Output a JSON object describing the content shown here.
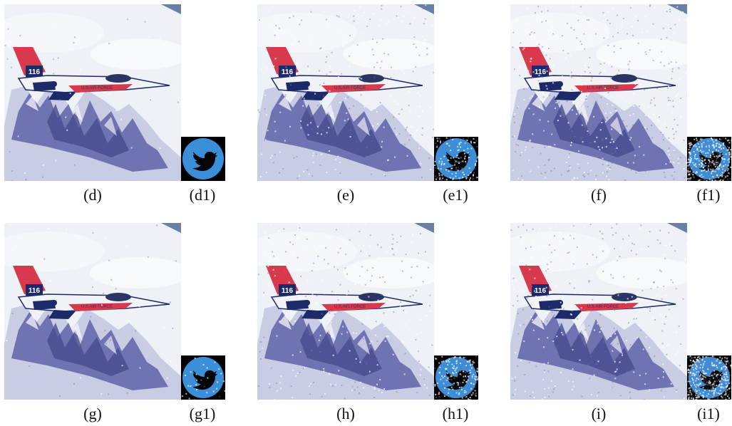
{
  "figure": {
    "panels": [
      {
        "id": "d",
        "label": "(d)",
        "wm_label": "(d1)",
        "noise": 0.05,
        "wm_noise": 0.0
      },
      {
        "id": "e",
        "label": "(e)",
        "wm_label": "(e1)",
        "noise": 0.35,
        "wm_noise": 0.25
      },
      {
        "id": "f",
        "label": "(f)",
        "wm_label": "(f1)",
        "noise": 0.55,
        "wm_noise": 0.55
      },
      {
        "id": "g",
        "label": "(g)",
        "wm_label": "(g1)",
        "noise": 0.05,
        "wm_noise": 0.05
      },
      {
        "id": "h",
        "label": "(h)",
        "wm_label": "(h1)",
        "noise": 0.35,
        "wm_noise": 0.3
      },
      {
        "id": "i",
        "label": "(i)",
        "wm_label": "(i1)",
        "noise": 0.45,
        "wm_noise": 0.6
      }
    ],
    "plane_text": "U.S.AIR FORCE",
    "tail_text": "116",
    "watermark_icon": "twitter-bird-icon",
    "colors": {
      "sky": "#eef1f6",
      "mountain": "#5f63a8",
      "tail": "#d8394c",
      "wm_blue": "#3b8fd9"
    }
  }
}
